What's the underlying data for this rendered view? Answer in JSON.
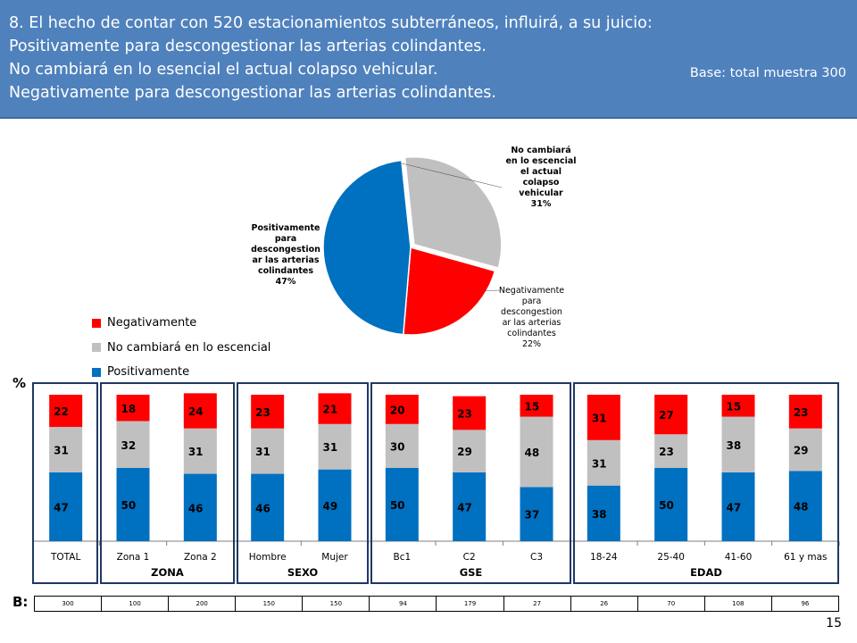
{
  "header": {
    "lines": [
      "8. El hecho de contar con 520 estacionamientos subterráneos,  influirá, a su juicio:",
      "Positivamente para descongestionar las arterias colindantes.",
      "No cambiará en lo esencial el actual colapso vehicular.",
      "Negativamente para descongestionar las arterias colindantes."
    ],
    "base": "Base:  total muestra 300"
  },
  "colors": {
    "negativo": "#ff0000",
    "neutro": "#c0c0c0",
    "positivo": "#0070c0",
    "header": "#4f81bd",
    "box": "#1f3864"
  },
  "legend": [
    "Negativamente",
    "No cambiará en lo escencial",
    "Positivamente"
  ],
  "pie_labels": {
    "neutro": [
      "No cambiará",
      "en lo escencial",
      "el actual",
      "colapso",
      "vehicular",
      "31%"
    ],
    "negativo": [
      "Negativamente",
      "para",
      "descongestion",
      "ar las arterias",
      "colindantes",
      "22%"
    ],
    "positivo": [
      "Positivamente",
      "para",
      "descongestion",
      "ar las arterias",
      "colindantes",
      "47%"
    ]
  },
  "pct_label": "%",
  "b_label": "B:",
  "page_number": "15",
  "group_names": [
    "ZONA",
    "SEXO",
    "GSE",
    "EDAD"
  ],
  "base_values": [
    "300",
    "100",
    "200",
    "150",
    "150",
    "94",
    "179",
    "27",
    "26",
    "70",
    "108",
    "96"
  ],
  "chart_data": [
    {
      "type": "pie",
      "categories": [
        "Positivamente",
        "No cambiará en lo escencial",
        "Negativamente"
      ],
      "values": [
        47,
        31,
        22
      ],
      "unit": "%"
    },
    {
      "type": "bar",
      "stacked": true,
      "categories": [
        "TOTAL",
        "Zona 1",
        "Zona 2",
        "Hombre",
        "Mujer",
        "Bc1",
        "C2",
        "C3",
        "18-24",
        "25-40",
        "41-60",
        "61 y mas"
      ],
      "groups": [
        {
          "name": "ZONA",
          "categories": [
            "Zona 1",
            "Zona 2"
          ]
        },
        {
          "name": "SEXO",
          "categories": [
            "Hombre",
            "Mujer"
          ]
        },
        {
          "name": "GSE",
          "categories": [
            "Bc1",
            "C2",
            "C3"
          ]
        },
        {
          "name": "EDAD",
          "categories": [
            "18-24",
            "25-40",
            "41-60",
            "61 y mas"
          ]
        }
      ],
      "series": [
        {
          "name": "Positivamente",
          "values": [
            47,
            50,
            46,
            46,
            49,
            50,
            47,
            37,
            38,
            50,
            47,
            48
          ]
        },
        {
          "name": "No cambiará en lo escencial",
          "values": [
            31,
            32,
            31,
            31,
            31,
            30,
            29,
            48,
            31,
            23,
            38,
            29
          ]
        },
        {
          "name": "Negativamente",
          "values": [
            22,
            18,
            24,
            23,
            21,
            20,
            23,
            15,
            31,
            27,
            15,
            23
          ]
        }
      ],
      "ylabel": "%",
      "ylim": [
        0,
        100
      ]
    }
  ]
}
